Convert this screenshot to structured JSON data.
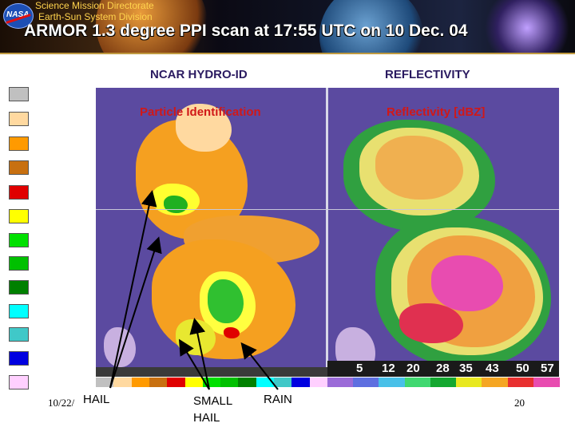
{
  "header": {
    "org_line1": "Science Mission Directorate",
    "org_line2": "Earth-Sun System Division",
    "logo_text": "NASA",
    "slide_title": "ARMOR 1.3 degree PPI scan at 17:55 UTC on 10 Dec. 04"
  },
  "left_panel": {
    "title": "NCAR HYDRO-ID",
    "subtitle": "Particle Identification"
  },
  "right_panel": {
    "title": "REFLECTIVITY",
    "subtitle": "Reflectivity [dBZ]"
  },
  "colorbar": {
    "ticks": [
      "5",
      "12",
      "20",
      "28",
      "35",
      "43",
      "50",
      "57"
    ],
    "colors": [
      "#9b6bd8",
      "#5e6fe0",
      "#48c0e8",
      "#40d870",
      "#14a830",
      "#e8e820",
      "#f5a623",
      "#e83030",
      "#e84cb0"
    ]
  },
  "legend_colors": [
    "#c0c0c0",
    "#ffd9a0",
    "#ff9a00",
    "#c87010",
    "#e00000",
    "#ffff00",
    "#00e000",
    "#00c000",
    "#008000",
    "#00ffff",
    "#40c8c8",
    "#0000e0",
    "#ffd0ff"
  ],
  "annotations": {
    "hail": "HAIL",
    "small_hail": "SMALL HAIL",
    "rain": "RAIN"
  },
  "footer": {
    "date": "10/22/",
    "page": "20"
  }
}
